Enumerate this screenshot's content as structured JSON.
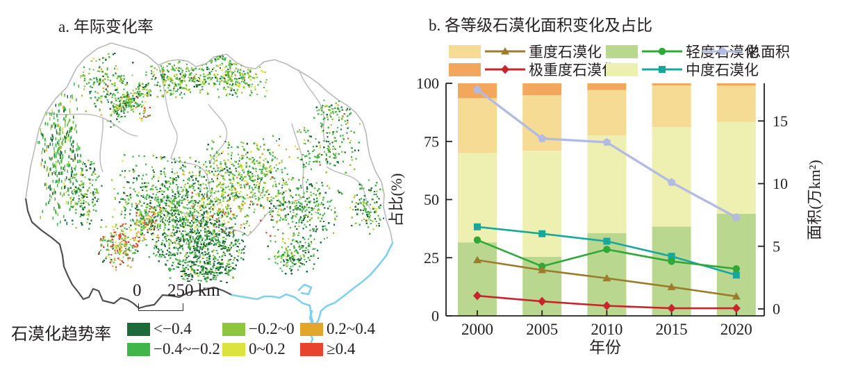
{
  "panel_a": {
    "title": "a. 年际变化率",
    "legend_title": "石漠化趋势率",
    "legend_items": [
      {
        "label": "<−0.4",
        "color": "#1e6b3a"
      },
      {
        "label": "−0.2~0",
        "color": "#8ec63f"
      },
      {
        "label": "0.2~0.4",
        "color": "#e2a62a"
      },
      {
        "label": "−0.4~−0.2",
        "color": "#41b549"
      },
      {
        "label": "0~0.2",
        "color": "#dce23e"
      },
      {
        "label": "≥0.4",
        "color": "#e8432e"
      }
    ],
    "scale_bar": {
      "start_label": "0",
      "end_label": "250 km"
    },
    "map_colors": {
      "boundary_light": "#b8b8b8",
      "boundary_dark": "#4f4f4f",
      "water": "#7fd0f0"
    }
  },
  "panel_b": {
    "title": "b. 各等级石漠化面积变化及占比",
    "legend": [
      {
        "label": "重度石漠化",
        "swatch": "#f6db95",
        "line": "#9b7b2c",
        "marker": "triangle",
        "row": 0,
        "col": 0
      },
      {
        "label": "轻度石漠化",
        "swatch": "#b9d78f",
        "line": "#2ea836",
        "marker": "circle",
        "row": 0,
        "col": 1
      },
      {
        "label": "总面积",
        "swatch": null,
        "line": "#b4bbe2",
        "marker": "pentagon",
        "row": 0,
        "col": 2
      },
      {
        "label": "极重度石漠化",
        "swatch": "#f2a75d",
        "line": "#c8242b",
        "marker": "diamond",
        "row": 1,
        "col": 0
      },
      {
        "label": "中度石漠化",
        "swatch": "#eef0b2",
        "line": "#17a79c",
        "marker": "square",
        "row": 1,
        "col": 1
      }
    ]
  },
  "chart_data": {
    "type": "bar",
    "title": "b. 各等级石漠化面积变化及占比",
    "xlabel": "年份",
    "ylabel_left": "占比(%)",
    "ylabel_right": "面积(万km²)",
    "categories": [
      "2000",
      "2005",
      "2010",
      "2015",
      "2020"
    ],
    "ylim_left": [
      0,
      100
    ],
    "yticks_left": [
      0,
      25,
      50,
      75,
      100
    ],
    "yticks_right": [
      0,
      5,
      10,
      15
    ],
    "grid": false,
    "legend_position": "top",
    "bar_series_percent": [
      {
        "name": "轻度石漠化",
        "color": "#b9d78f",
        "values": [
          31.6,
          25.4,
          35.6,
          38.4,
          43.9
        ]
      },
      {
        "name": "中度石漠化",
        "color": "#eef0b2",
        "values": [
          38.4,
          45.6,
          42.0,
          42.7,
          39.5
        ]
      },
      {
        "name": "重度石漠化",
        "color": "#f6db95",
        "values": [
          23.6,
          23.9,
          19.5,
          18.0,
          15.6
        ]
      },
      {
        "name": "极重度石漠化",
        "color": "#f2a75d",
        "values": [
          6.4,
          5.1,
          2.9,
          0.9,
          1.0
        ]
      }
    ],
    "line_series_area": [
      {
        "name": "总面积",
        "color": "#b4bbe2",
        "marker": "pentagon",
        "width": 3.4,
        "values": [
          17.5,
          13.6,
          13.3,
          10.1,
          7.3
        ]
      },
      {
        "name": "中度石漠化",
        "color": "#17a79c",
        "marker": "square",
        "width": 2.6,
        "values": [
          6.55,
          6.0,
          5.4,
          4.2,
          2.7
        ]
      },
      {
        "name": "轻度石漠化",
        "color": "#2ea836",
        "marker": "circle",
        "width": 2.6,
        "values": [
          5.5,
          3.4,
          4.75,
          3.8,
          3.2
        ]
      },
      {
        "name": "重度石漠化",
        "color": "#9b7b2c",
        "marker": "triangle",
        "width": 2.6,
        "values": [
          3.9,
          3.1,
          2.45,
          1.75,
          1.0
        ]
      },
      {
        "name": "极重度石漠化",
        "color": "#c8242b",
        "marker": "diamond",
        "width": 2.6,
        "values": [
          1.05,
          0.6,
          0.25,
          0.05,
          0.05
        ]
      }
    ]
  }
}
